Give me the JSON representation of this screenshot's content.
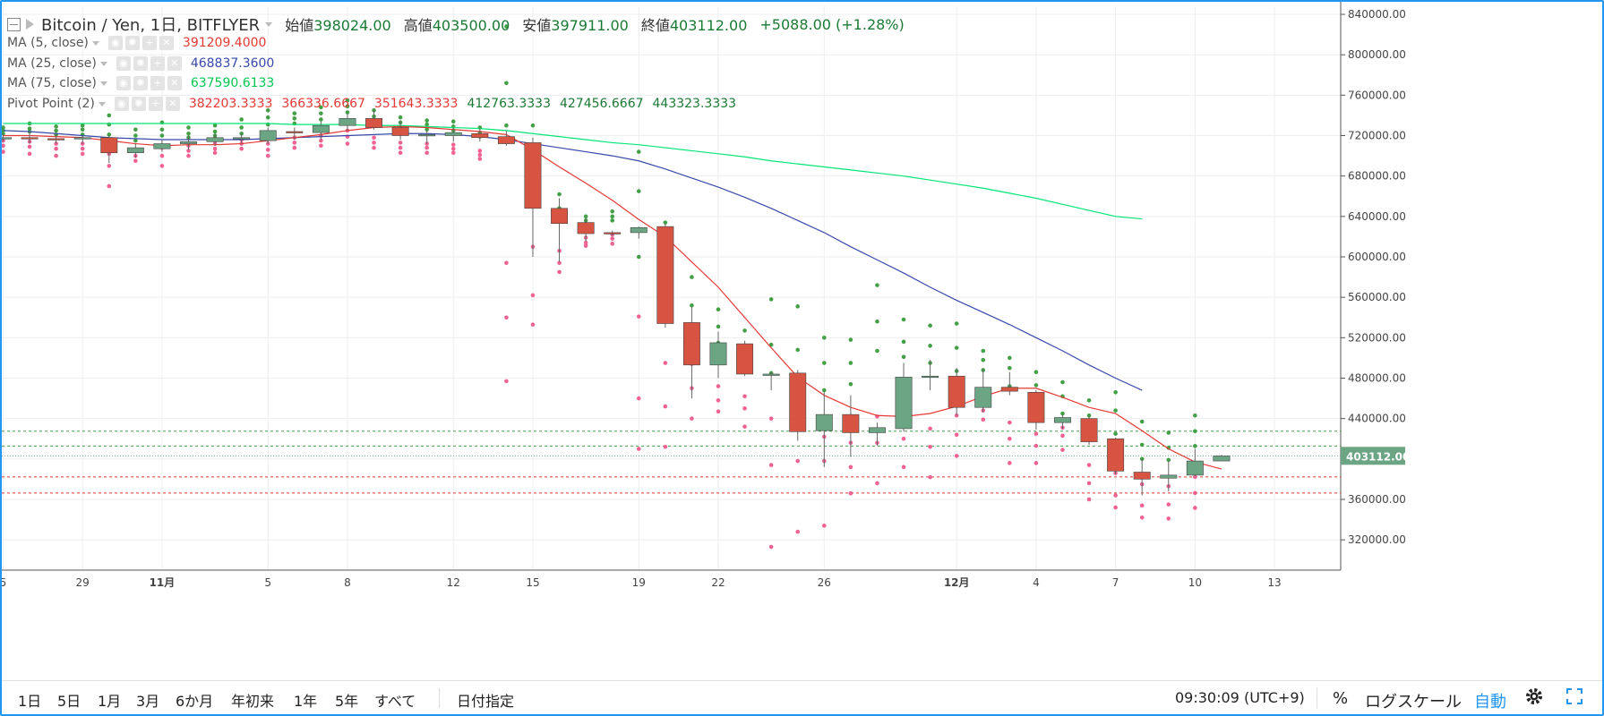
{
  "header": {
    "symbol": "Bitcoin / Yen, 1日, BITFLYER",
    "open_label": "始値",
    "open": "398024.00",
    "high_label": "高値",
    "high": "403500.00",
    "low_label": "安値",
    "low": "397911.00",
    "close_label": "終値",
    "close": "403112.00",
    "change": "+5088.00 (+1.28%)"
  },
  "indicators": [
    {
      "name": "MA (5, close)",
      "values": [
        "391209.4000"
      ],
      "colors": [
        "#e53935"
      ]
    },
    {
      "name": "MA (25, close)",
      "values": [
        "468837.3600"
      ],
      "colors": [
        "#3949ab"
      ]
    },
    {
      "name": "MA (75, close)",
      "values": [
        "637590.6133"
      ],
      "colors": [
        "#00c853"
      ]
    },
    {
      "name": "Pivot Point (2)",
      "values": [
        "382203.3333",
        "366336.6667",
        "351643.3333",
        "412763.3333",
        "427456.6667",
        "443323.3333"
      ],
      "colors": [
        "#e53935",
        "#e53935",
        "#e53935",
        "#1b7a34",
        "#1b7a34",
        "#1b7a34"
      ]
    }
  ],
  "bottom_bar": {
    "ranges": [
      "1日",
      "5日",
      "1月",
      "3月",
      "6か月",
      "年初来",
      "1年",
      "5年",
      "すべて"
    ],
    "date_select": "日付指定",
    "clock": "09:30:09 (UTC+9)",
    "percent": "%",
    "log_scale": "ログスケール",
    "auto": "自動",
    "settings_icon": "gear-icon",
    "fullscreen_icon": "fullscreen-icon"
  },
  "colors": {
    "up": "#6ba583",
    "down": "#d75442",
    "ma5": "#e53935",
    "ma25": "#3949ab",
    "ma75": "#00e676",
    "accent": "#2196f3",
    "pivot_support": "#f06292",
    "pivot_resistance": "#43a047"
  },
  "chart_data": {
    "type": "candlestick",
    "yticks": [
      320000,
      360000,
      400000,
      440000,
      480000,
      520000,
      560000,
      600000,
      640000,
      680000,
      720000,
      760000,
      800000,
      840000
    ],
    "ytick_labels": [
      "320000.00",
      "360000.00",
      "400000.00",
      "440000.00",
      "480000.00",
      "520000.00",
      "560000.00",
      "600000.00",
      "640000.00",
      "680000.00",
      "720000.00",
      "760000.00",
      "800000.00",
      "840000.00"
    ],
    "ylim": [
      290000,
      848000
    ],
    "xlim": [
      -0.05,
      50.5
    ],
    "xticks": [
      {
        "i": 0,
        "label": "5"
      },
      {
        "i": 3,
        "label": "29"
      },
      {
        "i": 6,
        "label": "11月"
      },
      {
        "i": 10,
        "label": "5"
      },
      {
        "i": 13,
        "label": "8"
      },
      {
        "i": 17,
        "label": "12"
      },
      {
        "i": 20,
        "label": "15"
      },
      {
        "i": 24,
        "label": "19"
      },
      {
        "i": 27,
        "label": "22"
      },
      {
        "i": 31,
        "label": "26"
      },
      {
        "i": 36,
        "label": "12月"
      },
      {
        "i": 39,
        "label": "4"
      },
      {
        "i": 42,
        "label": "7"
      },
      {
        "i": 45,
        "label": "10"
      },
      {
        "i": 48,
        "label": "13"
      }
    ],
    "last_price": 403112,
    "last_price_label": "403112.00",
    "ohlc": [
      [
        718000,
        722000,
        714000,
        718000
      ],
      [
        718000,
        724000,
        712000,
        717000
      ],
      [
        717000,
        722000,
        712000,
        716000
      ],
      [
        717000,
        720000,
        712000,
        718000
      ],
      [
        718000,
        720000,
        693000,
        703000
      ],
      [
        703000,
        712000,
        698000,
        708000
      ],
      [
        707000,
        716000,
        704000,
        712000
      ],
      [
        712000,
        720000,
        706000,
        714000
      ],
      [
        714000,
        722000,
        710000,
        718000
      ],
      [
        718000,
        722000,
        712000,
        718000
      ],
      [
        715000,
        728000,
        712000,
        725000
      ],
      [
        724000,
        728000,
        716000,
        723000
      ],
      [
        723000,
        734000,
        716000,
        730000
      ],
      [
        730000,
        742000,
        725000,
        737000
      ],
      [
        737000,
        745000,
        726000,
        728000
      ],
      [
        728000,
        735000,
        716000,
        720000
      ],
      [
        720000,
        725000,
        712000,
        721000
      ],
      [
        720000,
        728000,
        714000,
        723000
      ],
      [
        722000,
        728000,
        714000,
        718000
      ],
      [
        719000,
        725000,
        710000,
        712000
      ],
      [
        713000,
        718000,
        600000,
        648000
      ],
      [
        648000,
        658000,
        595000,
        633000
      ],
      [
        634000,
        638000,
        615000,
        623000
      ],
      [
        624000,
        626000,
        621000,
        623000
      ],
      [
        624000,
        630000,
        618000,
        629000
      ],
      [
        630000,
        633000,
        530000,
        534000
      ],
      [
        535000,
        551000,
        460000,
        493000
      ],
      [
        493000,
        526000,
        480000,
        515000
      ],
      [
        514000,
        517000,
        482000,
        484000
      ],
      [
        484000,
        486000,
        468000,
        484000
      ],
      [
        485000,
        488000,
        418000,
        427000
      ],
      [
        428000,
        466000,
        392000,
        444000
      ],
      [
        444000,
        463000,
        402000,
        426000
      ],
      [
        426000,
        436000,
        413000,
        431000
      ],
      [
        430000,
        495000,
        427000,
        481000
      ],
      [
        481000,
        498000,
        468000,
        482000
      ],
      [
        482000,
        490000,
        443000,
        451000
      ],
      [
        451000,
        489000,
        446000,
        471000
      ],
      [
        471000,
        486000,
        463000,
        467000
      ],
      [
        466000,
        468000,
        429000,
        436000
      ],
      [
        436000,
        444000,
        430000,
        441000
      ],
      [
        440000,
        442000,
        414000,
        417000
      ],
      [
        420000,
        421000,
        385000,
        388000
      ],
      [
        387000,
        400000,
        364000,
        380000
      ],
      [
        381000,
        398000,
        368000,
        384000
      ],
      [
        384000,
        410000,
        383000,
        398000
      ],
      [
        398000,
        404000,
        398000,
        403000
      ]
    ],
    "ma5": [
      720000,
      720000,
      719000,
      718000,
      715000,
      712000,
      710000,
      711000,
      711000,
      712000,
      715000,
      718000,
      721000,
      725000,
      728000,
      729000,
      728000,
      726000,
      724000,
      721000,
      706000,
      689000,
      673000,
      656000,
      637000,
      620000,
      595000,
      570000,
      540000,
      510000,
      481000,
      463000,
      451000,
      443000,
      442000,
      445000,
      452000,
      462000,
      470000,
      470000,
      461000,
      451000,
      445000,
      428000,
      410000,
      397000,
      390000
    ],
    "ma25": [
      725000,
      724000,
      722000,
      720000,
      718000,
      717000,
      716000,
      716000,
      716000,
      716000,
      717000,
      718000,
      719000,
      720000,
      721000,
      722000,
      722000,
      721000,
      719000,
      716000,
      712000,
      708000,
      704000,
      700000,
      695000,
      687000,
      678000,
      669000,
      659000,
      648000,
      636000,
      624000,
      610000,
      597000,
      584000,
      570000,
      557000,
      545000,
      533000,
      520000,
      507000,
      493000,
      480000,
      468000
    ],
    "ma75": [
      732000,
      732000,
      732000,
      732000,
      732000,
      732000,
      732000,
      732000,
      732000,
      732000,
      732000,
      731000,
      731000,
      731000,
      730000,
      730000,
      729000,
      728000,
      727000,
      725000,
      722000,
      719000,
      716000,
      713000,
      711000,
      708000,
      705000,
      702000,
      699000,
      695000,
      692000,
      689000,
      686000,
      683000,
      680000,
      676000,
      672000,
      668000,
      663000,
      658000,
      652000,
      646000,
      640000,
      637590
    ],
    "pivot_dots": [
      {
        "i": 0,
        "r": [
          728000,
          725000,
          722000
        ],
        "s": [
          715000,
          710000,
          704000
        ]
      },
      {
        "i": 1,
        "r": [
          732000,
          727000,
          724000
        ],
        "s": [
          714000,
          709000,
          702000
        ]
      },
      {
        "i": 2,
        "r": [
          729000,
          725000,
          721000
        ],
        "s": [
          712000,
          707000,
          700000
        ]
      },
      {
        "i": 3,
        "r": [
          730000,
          726000,
          721000
        ],
        "s": [
          712000,
          707000,
          702000
        ]
      },
      {
        "i": 4,
        "r": [
          740000,
          731000,
          721000
        ],
        "s": [
          702000,
          690000,
          670000
        ]
      },
      {
        "i": 5,
        "r": [
          726000,
          720000,
          715000
        ],
        "s": [
          705000,
          700000,
          695000
        ]
      },
      {
        "i": 6,
        "r": [
          733000,
          726000,
          720000
        ],
        "s": [
          708000,
          700000,
          690000
        ]
      },
      {
        "i": 7,
        "r": [
          728000,
          722000,
          718000
        ],
        "s": [
          710000,
          705000,
          700000
        ]
      },
      {
        "i": 8,
        "r": [
          730000,
          724000,
          720000
        ],
        "s": [
          712000,
          707000,
          703000
        ]
      },
      {
        "i": 9,
        "r": [
          736000,
          728000,
          722000
        ],
        "s": [
          716000,
          712000,
          707000
        ]
      },
      {
        "i": 10,
        "r": [
          745000,
          738000,
          731000
        ],
        "s": [
          712000,
          706000,
          700000
        ]
      },
      {
        "i": 11,
        "r": [
          742000,
          737000,
          732000
        ],
        "s": [
          718000,
          713000,
          708000
        ]
      },
      {
        "i": 12,
        "r": [
          748000,
          742000,
          736000
        ],
        "s": [
          720000,
          715000,
          710000
        ]
      },
      {
        "i": 13,
        "r": [
          755000,
          749000,
          743000
        ],
        "s": [
          725000,
          719000,
          712000
        ]
      },
      {
        "i": 14,
        "r": [
          745000,
          739000,
          734000
        ],
        "s": [
          718000,
          713000,
          708000
        ]
      },
      {
        "i": 15,
        "r": [
          738000,
          733000,
          728000
        ],
        "s": [
          713000,
          708000,
          703000
        ]
      },
      {
        "i": 16,
        "r": [
          735000,
          731000,
          726000
        ],
        "s": [
          712000,
          708000,
          703000
        ]
      },
      {
        "i": 17,
        "r": [
          734000,
          729000,
          725000
        ],
        "s": [
          711000,
          707000,
          703000
        ]
      },
      {
        "i": 18,
        "r": [
          728000,
          723000,
          719000
        ],
        "s": [
          705000,
          701000,
          697000
        ]
      },
      {
        "i": 19,
        "r": [
          828000,
          772000,
          730000
        ],
        "s": [
          594000,
          540000,
          477000
        ]
      },
      {
        "i": 20,
        "r": [
          730000,
          692000,
          664000
        ],
        "s": [
          610000,
          562000,
          533000
        ]
      },
      {
        "i": 21,
        "r": [
          662000,
          648000,
          636000
        ],
        "s": [
          606000,
          594000,
          585000
        ]
      },
      {
        "i": 22,
        "r": [
          640000,
          636000,
          630000
        ],
        "s": [
          619000,
          614000,
          611000
        ]
      },
      {
        "i": 23,
        "r": [
          645000,
          640000,
          636000
        ],
        "s": [
          622000,
          618000,
          613000
        ]
      },
      {
        "i": 24,
        "r": [
          704000,
          665000,
          600000
        ],
        "s": [
          541000,
          460000,
          410000
        ]
      },
      {
        "i": 25,
        "r": [
          634000,
          592000,
          558000
        ],
        "s": [
          495000,
          452000,
          412000
        ]
      },
      {
        "i": 26,
        "r": [
          580000,
          552000,
          532000
        ],
        "s": [
          494000,
          470000,
          440000
        ]
      },
      {
        "i": 27,
        "r": [
          548000,
          531000,
          515000
        ],
        "s": [
          472000,
          458000,
          447000
        ]
      },
      {
        "i": 28,
        "r": [
          527000,
          506000,
          497000
        ],
        "s": [
          462000,
          450000,
          432000
        ]
      },
      {
        "i": 29,
        "r": [
          558000,
          513000,
          485000
        ],
        "s": [
          440000,
          394000,
          313000
        ]
      },
      {
        "i": 30,
        "r": [
          551000,
          508000,
          478000
        ],
        "s": [
          432000,
          398000,
          328000
        ]
      },
      {
        "i": 31,
        "r": [
          520000,
          495000,
          468000
        ],
        "s": [
          422000,
          398000,
          334000
        ]
      },
      {
        "i": 32,
        "r": [
          518000,
          495000,
          474000
        ],
        "s": [
          416000,
          392000,
          366000
        ]
      },
      {
        "i": 33,
        "r": [
          572000,
          536000,
          507000
        ],
        "s": [
          442000,
          416000,
          376000
        ]
      },
      {
        "i": 34,
        "r": [
          538000,
          516000,
          501000
        ],
        "s": [
          438000,
          420000,
          392000
        ]
      },
      {
        "i": 35,
        "r": [
          532000,
          512000,
          495000
        ],
        "s": [
          430000,
          412000,
          382000
        ]
      },
      {
        "i": 36,
        "r": [
          534000,
          510000,
          487000
        ],
        "s": [
          443000,
          424000,
          403000
        ]
      },
      {
        "i": 37,
        "r": [
          507000,
          498000,
          488000
        ],
        "s": [
          457000,
          448000,
          439000
        ]
      },
      {
        "i": 38,
        "r": [
          500000,
          490000,
          472000
        ],
        "s": [
          436000,
          420000,
          396000
        ]
      },
      {
        "i": 39,
        "r": [
          486000,
          473000,
          457000
        ],
        "s": [
          425000,
          413000,
          396000
        ]
      },
      {
        "i": 40,
        "r": [
          476000,
          462000,
          445000
        ],
        "s": [
          431000,
          423000,
          409000
        ]
      },
      {
        "i": 41,
        "r": [
          458000,
          443000,
          425000
        ],
        "s": [
          394000,
          376000,
          360000
        ]
      },
      {
        "i": 42,
        "r": [
          466000,
          448000,
          425000
        ],
        "s": [
          386000,
          364000,
          352000
        ]
      },
      {
        "i": 43,
        "r": [
          437000,
          414000,
          400000
        ],
        "s": [
          375000,
          354000,
          342000
        ]
      },
      {
        "i": 44,
        "r": [
          426000,
          411000,
          399000
        ],
        "s": [
          373000,
          355000,
          341000
        ]
      },
      {
        "i": 45,
        "r": [
          443000,
          427500,
          412800
        ],
        "s": [
          382200,
          366300,
          351600
        ]
      }
    ],
    "pivot_levels": [
      {
        "value": 427456.6667,
        "color": "#43a047"
      },
      {
        "value": 412763.3333,
        "color": "#43a047"
      },
      {
        "value": 382203.3333,
        "color": "#e53935"
      },
      {
        "value": 366336.6667,
        "color": "#e53935"
      }
    ]
  }
}
